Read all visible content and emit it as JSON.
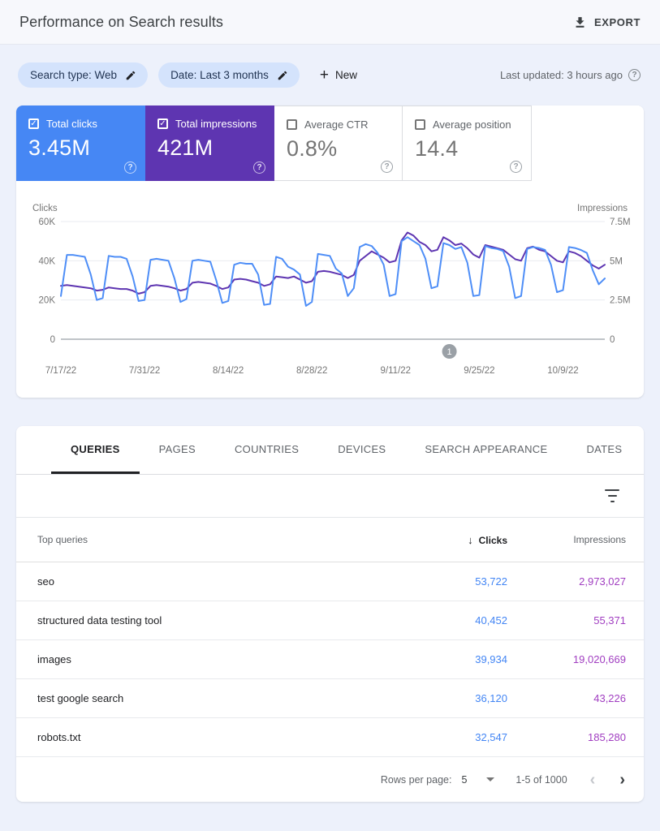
{
  "header": {
    "title": "Performance on Search results",
    "export_label": "EXPORT"
  },
  "filters": {
    "chips": [
      {
        "label": "Search type: Web"
      },
      {
        "label": "Date: Last 3 months"
      }
    ],
    "new_label": "New",
    "last_updated": "Last updated: 3 hours ago"
  },
  "metrics": {
    "cards": [
      {
        "label": "Total clicks",
        "value": "3.45M",
        "selected": true,
        "color": "#4687f4"
      },
      {
        "label": "Total impressions",
        "value": "421M",
        "selected": true,
        "color": "#5e35b1"
      },
      {
        "label": "Average CTR",
        "value": "0.8%",
        "selected": false
      },
      {
        "label": "Average position",
        "value": "14.4",
        "selected": false
      }
    ]
  },
  "chart_data": {
    "type": "line",
    "grid": true,
    "legend_position": "none",
    "axes": {
      "left": {
        "label": "Clicks",
        "ticks": [
          "60K",
          "40K",
          "20K",
          "0"
        ],
        "max": 60000
      },
      "right": {
        "label": "Impressions",
        "ticks": [
          "7.5M",
          "5M",
          "2.5M",
          "0"
        ],
        "max": 7500000
      }
    },
    "x_tick_labels": [
      "7/17/22",
      "7/31/22",
      "8/14/22",
      "8/28/22",
      "9/11/22",
      "9/25/22",
      "10/9/22"
    ],
    "x_tick_indices": [
      0,
      14,
      28,
      42,
      56,
      70,
      84
    ],
    "annotation": {
      "label": "1",
      "day_index": 65
    },
    "series": [
      {
        "name": "Total impressions",
        "axis": "right",
        "color": "#5e35b1",
        "values": [
          3400000,
          3450000,
          3400000,
          3350000,
          3300000,
          3250000,
          3100000,
          3150000,
          3300000,
          3250000,
          3200000,
          3200000,
          3100000,
          2900000,
          3000000,
          3400000,
          3450000,
          3400000,
          3350000,
          3250000,
          3100000,
          3200000,
          3600000,
          3650000,
          3600000,
          3550000,
          3400000,
          3200000,
          3300000,
          3800000,
          3850000,
          3800000,
          3700000,
          3600000,
          3400000,
          3500000,
          4000000,
          3950000,
          3900000,
          4000000,
          3800000,
          3600000,
          3700000,
          4300000,
          4350000,
          4300000,
          4200000,
          4100000,
          3900000,
          4100000,
          5000000,
          5300000,
          5600000,
          5400000,
          5200000,
          4900000,
          5000000,
          6300000,
          6800000,
          6600000,
          6200000,
          6000000,
          5600000,
          5700000,
          6500000,
          6300000,
          6000000,
          6100000,
          5800000,
          5400000,
          5200000,
          6000000,
          5900000,
          5800000,
          5700000,
          5400000,
          5100000,
          5000000,
          5800000,
          5900000,
          5700000,
          5600000,
          5300000,
          5000000,
          4900000,
          5600000,
          5500000,
          5300000,
          5000000,
          4700000,
          4500000,
          4750000
        ]
      },
      {
        "name": "Total clicks",
        "axis": "left",
        "color": "#4e8ef7",
        "values": [
          22000,
          43000,
          43000,
          42500,
          42000,
          33000,
          20000,
          21000,
          42500,
          42000,
          42000,
          41000,
          32000,
          19500,
          20000,
          40500,
          41000,
          40500,
          40000,
          31000,
          19000,
          20500,
          40000,
          40500,
          40000,
          39500,
          30000,
          18500,
          19500,
          38000,
          39000,
          38500,
          38500,
          33000,
          17500,
          18000,
          42000,
          41000,
          37000,
          35500,
          33000,
          17000,
          19000,
          43500,
          43000,
          42500,
          36000,
          33500,
          22000,
          26000,
          47000,
          48500,
          47500,
          44000,
          38000,
          22000,
          23000,
          50000,
          52000,
          50000,
          48000,
          41000,
          26000,
          27000,
          49000,
          48000,
          46000,
          47000,
          39000,
          22000,
          22500,
          47500,
          46500,
          46000,
          45000,
          37000,
          21000,
          22000,
          46000,
          47000,
          46500,
          45500,
          38000,
          24000,
          25000,
          47000,
          46500,
          45500,
          44000,
          35000,
          28000,
          31000
        ]
      }
    ]
  },
  "tabs": [
    "QUERIES",
    "PAGES",
    "COUNTRIES",
    "DEVICES",
    "SEARCH APPEARANCE",
    "DATES"
  ],
  "table": {
    "columns": {
      "queries": "Top queries",
      "clicks": "Clicks",
      "impressions": "Impressions"
    },
    "sort_arrow": "↓",
    "rows": [
      {
        "query": "seo",
        "clicks": "53,722",
        "impressions": "2,973,027"
      },
      {
        "query": "structured data testing tool",
        "clicks": "40,452",
        "impressions": "55,371"
      },
      {
        "query": "images",
        "clicks": "39,934",
        "impressions": "19,020,669"
      },
      {
        "query": "test google search",
        "clicks": "36,120",
        "impressions": "43,226"
      },
      {
        "query": "robots.txt",
        "clicks": "32,547",
        "impressions": "185,280"
      }
    ]
  },
  "pagination": {
    "rows_per_page_label": "Rows per page:",
    "rows_per_page": "5",
    "range": "1-5 of 1000",
    "prev": "‹",
    "next": "›"
  },
  "glyphs": {
    "check": "✓",
    "question": "?",
    "plus": "+"
  }
}
